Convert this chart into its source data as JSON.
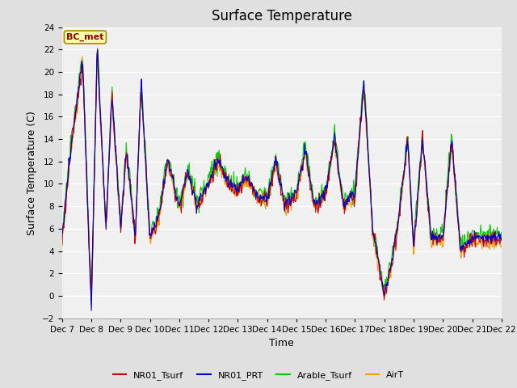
{
  "title": "Surface Temperature",
  "ylabel": "Surface Temperature (C)",
  "xlabel": "Time",
  "ylim": [
    -2,
    24
  ],
  "yticks": [
    -2,
    0,
    2,
    4,
    6,
    8,
    10,
    12,
    14,
    16,
    18,
    20,
    22,
    24
  ],
  "xtick_labels": [
    "Dec 7",
    "Dec 8",
    "Dec 9",
    "Dec 10",
    "Dec 11",
    "Dec 12",
    "Dec 13",
    "Dec 14",
    "Dec 15",
    "Dec 16",
    "Dec 17",
    "Dec 18",
    "Dec 19",
    "Dec 20",
    "Dec 21",
    "Dec 22"
  ],
  "series": {
    "NR01_Tsurf": {
      "color": "#cc0000",
      "linewidth": 0.8
    },
    "NR01_PRT": {
      "color": "#0000cc",
      "linewidth": 0.8
    },
    "Arable_Tsurf": {
      "color": "#00cc00",
      "linewidth": 0.8
    },
    "AirT": {
      "color": "#ff9900",
      "linewidth": 0.8
    }
  },
  "annotation_text": "BC_met",
  "annotation_color": "#8B0000",
  "fig_facecolor": "#e0e0e0",
  "ax_facecolor": "#f0f0f0",
  "grid_color": "#ffffff",
  "title_fontsize": 12,
  "axis_label_fontsize": 9,
  "tick_fontsize": 7.5
}
